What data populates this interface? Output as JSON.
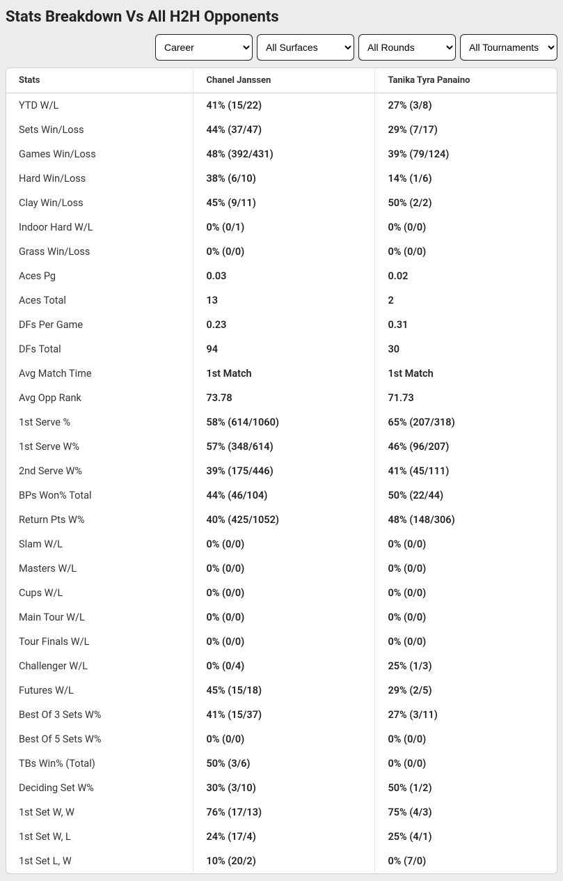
{
  "title": "Stats Breakdown Vs All H2H Opponents",
  "filters": {
    "period": {
      "selected": "Career",
      "options": [
        "Career"
      ]
    },
    "surface": {
      "selected": "All Surfaces",
      "options": [
        "All Surfaces"
      ]
    },
    "round": {
      "selected": "All Rounds",
      "options": [
        "All Rounds"
      ]
    },
    "tourn": {
      "selected": "All Tournaments",
      "options": [
        "All Tournaments"
      ]
    }
  },
  "columns": {
    "stats": "Stats",
    "p1": "Chanel Janssen",
    "p2": "Tanika Tyra Panaino"
  },
  "rows": [
    {
      "stat": "YTD W/L",
      "p1": "41% (15/22)",
      "p2": "27% (3/8)"
    },
    {
      "stat": "Sets Win/Loss",
      "p1": "44% (37/47)",
      "p2": "29% (7/17)"
    },
    {
      "stat": "Games Win/Loss",
      "p1": "48% (392/431)",
      "p2": "39% (79/124)"
    },
    {
      "stat": "Hard Win/Loss",
      "p1": "38% (6/10)",
      "p2": "14% (1/6)"
    },
    {
      "stat": "Clay Win/Loss",
      "p1": "45% (9/11)",
      "p2": "50% (2/2)"
    },
    {
      "stat": "Indoor Hard W/L",
      "p1": "0% (0/1)",
      "p2": "0% (0/0)"
    },
    {
      "stat": "Grass Win/Loss",
      "p1": "0% (0/0)",
      "p2": "0% (0/0)"
    },
    {
      "stat": "Aces Pg",
      "p1": "0.03",
      "p2": "0.02"
    },
    {
      "stat": "Aces Total",
      "p1": "13",
      "p2": "2"
    },
    {
      "stat": "DFs Per Game",
      "p1": "0.23",
      "p2": "0.31"
    },
    {
      "stat": "DFs Total",
      "p1": "94",
      "p2": "30"
    },
    {
      "stat": "Avg Match Time",
      "p1": "1st Match",
      "p2": "1st Match"
    },
    {
      "stat": "Avg Opp Rank",
      "p1": "73.78",
      "p2": "71.73"
    },
    {
      "stat": "1st Serve %",
      "p1": "58% (614/1060)",
      "p2": "65% (207/318)"
    },
    {
      "stat": "1st Serve W%",
      "p1": "57% (348/614)",
      "p2": "46% (96/207)"
    },
    {
      "stat": "2nd Serve W%",
      "p1": "39% (175/446)",
      "p2": "41% (45/111)"
    },
    {
      "stat": "BPs Won% Total",
      "p1": "44% (46/104)",
      "p2": "50% (22/44)"
    },
    {
      "stat": "Return Pts W%",
      "p1": "40% (425/1052)",
      "p2": "48% (148/306)"
    },
    {
      "stat": "Slam W/L",
      "p1": "0% (0/0)",
      "p2": "0% (0/0)"
    },
    {
      "stat": "Masters W/L",
      "p1": "0% (0/0)",
      "p2": "0% (0/0)"
    },
    {
      "stat": "Cups W/L",
      "p1": "0% (0/0)",
      "p2": "0% (0/0)"
    },
    {
      "stat": "Main Tour W/L",
      "p1": "0% (0/0)",
      "p2": "0% (0/0)"
    },
    {
      "stat": "Tour Finals W/L",
      "p1": "0% (0/0)",
      "p2": "0% (0/0)"
    },
    {
      "stat": "Challenger W/L",
      "p1": "0% (0/4)",
      "p2": "25% (1/3)"
    },
    {
      "stat": "Futures W/L",
      "p1": "45% (15/18)",
      "p2": "29% (2/5)"
    },
    {
      "stat": "Best Of 3 Sets W%",
      "p1": "41% (15/37)",
      "p2": "27% (3/11)"
    },
    {
      "stat": "Best Of 5 Sets W%",
      "p1": "0% (0/0)",
      "p2": "0% (0/0)"
    },
    {
      "stat": "TBs Win% (Total)",
      "p1": "50% (3/6)",
      "p2": "0% (0/0)"
    },
    {
      "stat": "Deciding Set W%",
      "p1": "30% (3/10)",
      "p2": "50% (1/2)"
    },
    {
      "stat": "1st Set W, W",
      "p1": "76% (17/13)",
      "p2": "75% (4/3)"
    },
    {
      "stat": "1st Set W, L",
      "p1": "24% (17/4)",
      "p2": "25% (4/1)"
    },
    {
      "stat": "1st Set L, W",
      "p1": "10% (20/2)",
      "p2": "0% (7/0)"
    }
  ]
}
